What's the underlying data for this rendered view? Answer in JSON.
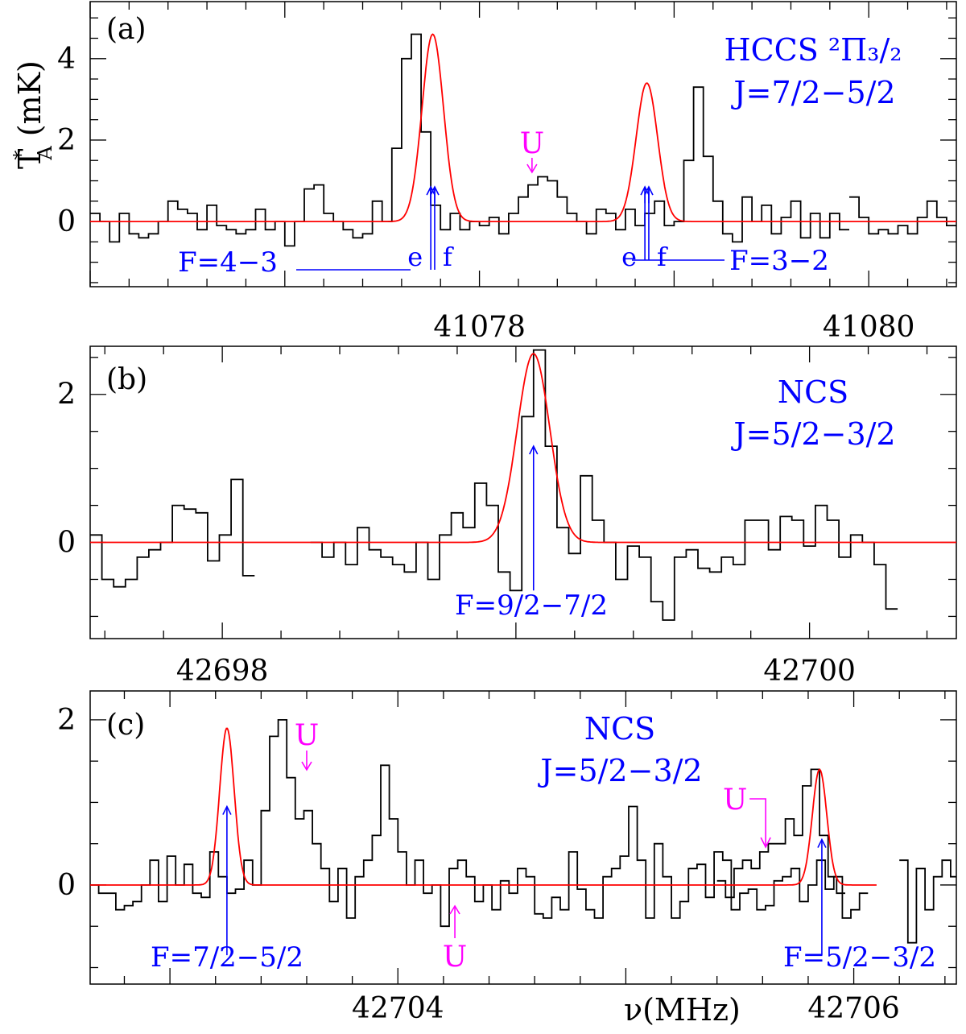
{
  "figure": {
    "ylabel": "T",
    "ylabel_sup": "*",
    "ylabel_sub": "A",
    "ylabel_unit": " (mK)",
    "xlabel": "ν(MHz)"
  },
  "colors": {
    "spectrum": "#000000",
    "fit": "#ff0000",
    "label": "#0000ff",
    "unidentified": "#ff00ff"
  },
  "chart_data": [
    {
      "type": "line",
      "panel": "(a)",
      "title_lines": [
        "HCCS ²Π₃/₂",
        "J=7/2−5/2"
      ],
      "xlim": [
        41076.0,
        41080.45
      ],
      "ylim": [
        -1.6,
        5.4
      ],
      "xticks_labeled": [
        41078,
        41080
      ],
      "yticks_labeled": [
        0,
        2,
        4
      ],
      "grid": false,
      "spectrum_segments": [
        {
          "x0": 41076.0,
          "dx": 0.05,
          "values": [
            0.2,
            0.0,
            -0.5,
            0.2,
            -0.3,
            -0.4,
            -0.3,
            0.0,
            0.5,
            0.3,
            0.2,
            -0.2,
            0.4,
            -0.1,
            -0.2,
            -0.3,
            -0.2,
            0.3,
            -0.2,
            0.0,
            -0.6,
            0.0,
            0.8,
            0.9,
            0.2,
            0.0,
            -0.2,
            -0.4,
            -0.3,
            0.5,
            0.0,
            1.8,
            4.0,
            4.6,
            2.2,
            0.4,
            -0.2,
            0.2,
            -0.2,
            0.0,
            -0.1,
            0.1,
            -0.3,
            0.2,
            0.6,
            0.9,
            1.1,
            1.0,
            0.6,
            0.2,
            0.0,
            -0.3,
            0.3,
            0.2,
            -0.2,
            0.3,
            -0.1,
            0.2,
            0.5,
            -0.1,
            0.0,
            1.5,
            3.3,
            1.6,
            0.5,
            -0.3,
            -0.5,
            0.6,
            0.0,
            0.4,
            -0.3,
            0.1,
            0.5,
            -0.4,
            0.2,
            -0.4,
            0.2,
            -0.2
          ]
        },
        {
          "x0": 41079.9,
          "dx": 0.05,
          "values": [
            0.6,
            0.1,
            -0.3,
            -0.2,
            -0.3,
            -0.1,
            -0.3,
            0.1,
            0.5,
            0.1,
            -0.1
          ]
        }
      ],
      "fit_lines": [
        {
          "center": 41077.76,
          "amp": 4.6,
          "fwhm": 0.13
        },
        {
          "center": 41078.86,
          "amp": 3.4,
          "fwhm": 0.13
        }
      ],
      "fit_range": [
        41076.0,
        41080.45
      ],
      "line_markers": [
        {
          "x": 41077.75,
          "from": 0.45,
          "to": 0.85,
          "label": "e"
        },
        {
          "x": 41077.77,
          "from": 0.45,
          "to": 0.85,
          "label": "f"
        },
        {
          "x": 41078.85,
          "from": 0.45,
          "to": 0.85,
          "label": "e"
        },
        {
          "x": 41078.87,
          "from": 0.45,
          "to": 0.85,
          "label": "f"
        }
      ],
      "transition_labels": [
        "F=4−3",
        "F=3−2"
      ],
      "u_markers": [
        {
          "label": "U",
          "x": 41078.27
        }
      ]
    },
    {
      "type": "line",
      "panel": "(b)",
      "title_lines": [
        "NCS",
        "J=5/2−3/2"
      ],
      "xlim": [
        42697.55,
        42700.5
      ],
      "ylim": [
        -1.3,
        2.65
      ],
      "xticks_labeled": [
        42698,
        42700
      ],
      "yticks_labeled": [
        0,
        2
      ],
      "grid": false,
      "spectrum_segments": [
        {
          "x0": 42697.55,
          "dx": 0.04,
          "values": [
            0.1,
            -0.5,
            -0.6,
            -0.5,
            -0.2,
            -0.1,
            0.0,
            0.5,
            0.45,
            0.4,
            -0.25,
            0.1,
            0.85,
            -0.45
          ]
        },
        {
          "x0": 42698.3,
          "dx": 0.04,
          "values": [
            0.0,
            -0.2,
            0.0,
            -0.3,
            0.2,
            -0.1,
            -0.2,
            -0.3,
            -0.4,
            0.0,
            -0.5,
            0.1,
            0.4,
            0.2,
            0.8,
            0.5,
            -0.4,
            -0.65,
            1.7,
            2.6,
            1.3,
            0.2,
            -0.15,
            0.9,
            0.3,
            0.0,
            -0.5,
            -0.05,
            -0.2,
            -0.8,
            -1.05,
            -0.2,
            -0.1,
            -0.35,
            -0.4,
            -0.2,
            -0.3,
            0.3,
            0.3,
            -0.1,
            0.35,
            0.3,
            -0.05,
            0.5,
            0.3,
            -0.2,
            0.1,
            0.0,
            -0.3,
            -0.9
          ]
        }
      ],
      "fit_lines": [
        {
          "center": 42699.06,
          "amp": 2.55,
          "fwhm": 0.13
        }
      ],
      "fit_range": [
        42697.55,
        42700.5
      ],
      "line_markers": [
        {
          "x": 42699.06,
          "from": -0.65,
          "to": 1.3,
          "label": ""
        }
      ],
      "transition_labels": [
        "F=9/2−7/2"
      ],
      "u_markers": []
    },
    {
      "type": "line",
      "panel": "(c)",
      "title_lines": [
        "NCS",
        "J=5/2−3/2"
      ],
      "xlim": [
        42702.65,
        42706.45
      ],
      "ylim": [
        -1.2,
        2.35
      ],
      "xticks_labeled": [
        42704,
        42706
      ],
      "yticks_labeled": [
        0,
        2
      ],
      "grid": false,
      "spectrum_segments": [
        {
          "x0": 42702.65,
          "dx": 0.0375,
          "values": [
            0.0,
            -0.1,
            -0.1,
            -0.3,
            -0.25,
            -0.2,
            0.0,
            0.3,
            -0.2,
            0.35,
            0.0,
            0.25,
            -0.1,
            -0.15,
            0.4,
            0.1,
            -0.1,
            -0.05,
            0.3,
            0.0,
            0.9,
            1.8,
            2.0,
            1.3,
            0.8,
            0.9,
            0.5,
            0.2,
            -0.2,
            0.2,
            -0.4,
            0.1,
            0.3,
            0.6,
            1.45,
            0.8,
            0.4,
            0.0,
            0.3,
            -0.1,
            0.0,
            -0.5,
            0.2,
            0.3,
            0.1,
            -0.2,
            0.0,
            -0.3,
            0.05,
            -0.1,
            0.2,
            0.1,
            -0.35,
            -0.4,
            -0.15,
            -0.3,
            0.4,
            -0.05,
            -0.3,
            -0.4,
            0.1,
            0.2,
            0.35,
            0.95,
            0.3,
            -0.4,
            0.5,
            0.1,
            -0.4,
            -0.2,
            0.2,
            0.25,
            -0.15,
            0.4,
            0.3,
            -0.3,
            -0.1,
            -0.05,
            -0.3,
            -0.25,
            0.05,
            0.1,
            0.2,
            -0.2,
            0.0,
            0.3,
            -0.05,
            0.1,
            -0.4,
            -0.3,
            -0.1
          ]
        },
        {
          "x0": 42705.4,
          "dx": 0.0375,
          "values": [
            0.05,
            -0.15,
            0.2,
            0.3,
            0.2,
            0.4,
            0.5,
            0.5,
            0.8,
            0.6,
            1.2,
            1.4,
            0.6,
            0.1,
            -0.1
          ]
        },
        {
          "x0": 42706.2,
          "dx": 0.0375,
          "values": [
            0.3,
            -0.7,
            0.2,
            -0.3,
            0.1,
            0.3,
            0.1
          ]
        }
      ],
      "fit_lines": [
        {
          "center": 42703.25,
          "amp": 1.9,
          "fwhm": 0.075
        },
        {
          "center": 42705.85,
          "amp": 1.4,
          "fwhm": 0.075
        }
      ],
      "fit_range": [
        42702.65,
        42706.1
      ],
      "line_markers": [
        {
          "x": 42703.25,
          "from": -0.85,
          "to": 0.95,
          "label": ""
        },
        {
          "x": 42705.86,
          "from": -0.85,
          "to": 0.55,
          "label": ""
        }
      ],
      "transition_labels": [
        "F=7/2−5/2",
        "F=5/2−3/2"
      ],
      "u_markers": [
        {
          "label": "U",
          "x": 42703.6
        },
        {
          "label": "U",
          "x": 42704.25
        },
        {
          "label": "U",
          "x": 42705.55
        }
      ]
    }
  ]
}
